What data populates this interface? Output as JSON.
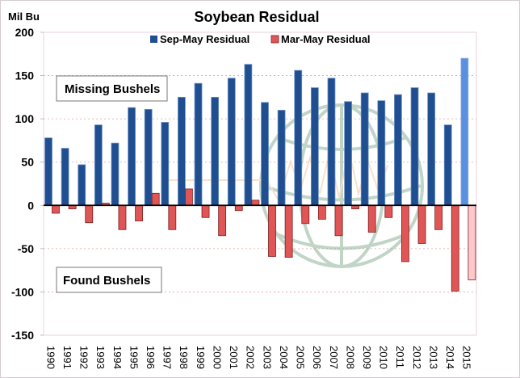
{
  "chart_data": {
    "type": "bar",
    "title": "Soybean Residual",
    "ylabel": "Mil Bu",
    "xlabel": "",
    "ylim": [
      -150,
      200
    ],
    "yticks": [
      200,
      150,
      100,
      50,
      0,
      -50,
      -100,
      -150
    ],
    "ytick_labels": [
      "200",
      "150",
      "100",
      "50",
      "0",
      "-50",
      "-100",
      "-150"
    ],
    "grid": true,
    "legend_position": "top-center",
    "categories": [
      "1990",
      "1991",
      "1992",
      "1993",
      "1994",
      "1995",
      "1996",
      "1997",
      "1998",
      "1999",
      "2000",
      "2001",
      "2002",
      "2003",
      "2004",
      "2005",
      "2006",
      "2007",
      "2008",
      "2009",
      "2010",
      "2011",
      "2012",
      "2013",
      "2014",
      "2015"
    ],
    "series": [
      {
        "name": "Sep-May Residual",
        "color": "#1f4e91",
        "highlight_last_color": "#5b8fe0",
        "values": [
          78,
          66,
          47,
          93,
          72,
          113,
          111,
          96,
          125,
          141,
          125,
          147,
          163,
          119,
          110,
          156,
          136,
          147,
          120,
          130,
          121,
          128,
          136,
          130,
          93,
          170
        ]
      },
      {
        "name": "Mar-May Residual",
        "color": "#e05555",
        "highlight_last_color": "#ffc9cc",
        "values": [
          -9,
          -4,
          -20,
          2.5,
          -28,
          -18,
          14,
          -28,
          19,
          -14,
          -35,
          -6,
          6,
          -59,
          -60,
          -21,
          -16,
          -35,
          -4,
          -31,
          -14,
          -65,
          -44,
          -28,
          -99,
          -86
        ]
      }
    ],
    "annotations": [
      {
        "text": "Missing Bushels",
        "y": 130,
        "region": "upper-left"
      },
      {
        "text": "Found Bushels",
        "y": -86,
        "region": "lower-left"
      }
    ]
  },
  "colors": {
    "grid": "#e8a0a0",
    "axis_zero": "#000000",
    "plot_border": "#e8d0d8",
    "watermark": "#8fb39a"
  }
}
